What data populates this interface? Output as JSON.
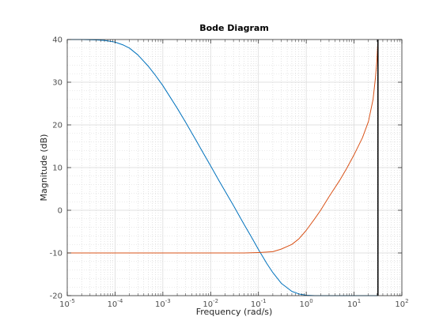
{
  "chart_data": {
    "type": "line",
    "title": "Bode Diagram",
    "xlabel": "Frequency  (rad/s)",
    "ylabel": "Magnitude (dB)",
    "x_scale": "log",
    "xlim": [
      1e-05,
      100
    ],
    "ylim": [
      -20,
      40
    ],
    "grid": true,
    "x_ticks": [
      {
        "base": "10",
        "exp": "-5",
        "value": 1e-05
      },
      {
        "base": "10",
        "exp": "-4",
        "value": 0.0001
      },
      {
        "base": "10",
        "exp": "-3",
        "value": 0.001
      },
      {
        "base": "10",
        "exp": "-2",
        "value": 0.01
      },
      {
        "base": "10",
        "exp": "-1",
        "value": 0.1
      },
      {
        "base": "10",
        "exp": "0",
        "value": 1
      },
      {
        "base": "10",
        "exp": "1",
        "value": 10
      },
      {
        "base": "10",
        "exp": "2",
        "value": 100
      }
    ],
    "y_ticks": [
      "-20",
      "-10",
      "0",
      "10",
      "20",
      "30",
      "40"
    ],
    "vertical_line": {
      "x": 31.6,
      "color": "#000000"
    },
    "series": [
      {
        "color": "#0072bd",
        "x": [
          1e-05,
          2e-05,
          4e-05,
          6e-05,
          0.0001,
          0.00015,
          0.0002,
          0.0003,
          0.0005,
          0.0007,
          0.001,
          0.0015,
          0.002,
          0.003,
          0.005,
          0.007,
          0.01,
          0.015,
          0.02,
          0.03,
          0.05,
          0.07,
          0.1,
          0.15,
          0.2,
          0.3,
          0.5,
          0.7,
          1,
          1.5,
          2,
          3,
          5,
          10,
          31.6
        ],
        "y": [
          40,
          40,
          39.9,
          39.8,
          39.4,
          38.7,
          38,
          36.4,
          33.7,
          31.6,
          29.2,
          26.1,
          23.9,
          20.6,
          16.3,
          13.4,
          10.4,
          6.9,
          4.5,
          1.1,
          -3.3,
          -6.1,
          -9.2,
          -12.5,
          -14.6,
          -17.1,
          -19,
          -19.6,
          -19.9,
          -20,
          -20,
          -20,
          -20,
          -20,
          -20
        ]
      },
      {
        "color": "#d95319",
        "x": [
          1e-05,
          0.001,
          0.01,
          0.05,
          0.1,
          0.15,
          0.2,
          0.3,
          0.5,
          0.7,
          1,
          1.5,
          2,
          3,
          5,
          7,
          10,
          15,
          20,
          25,
          28,
          30,
          31.6
        ],
        "y": [
          -10,
          -10,
          -10,
          -10,
          -9.9,
          -9.8,
          -9.7,
          -9.1,
          -8,
          -6.7,
          -4.7,
          -2,
          0,
          3.2,
          7,
          9.8,
          13,
          17,
          20.8,
          26,
          31,
          35,
          40
        ]
      }
    ]
  }
}
